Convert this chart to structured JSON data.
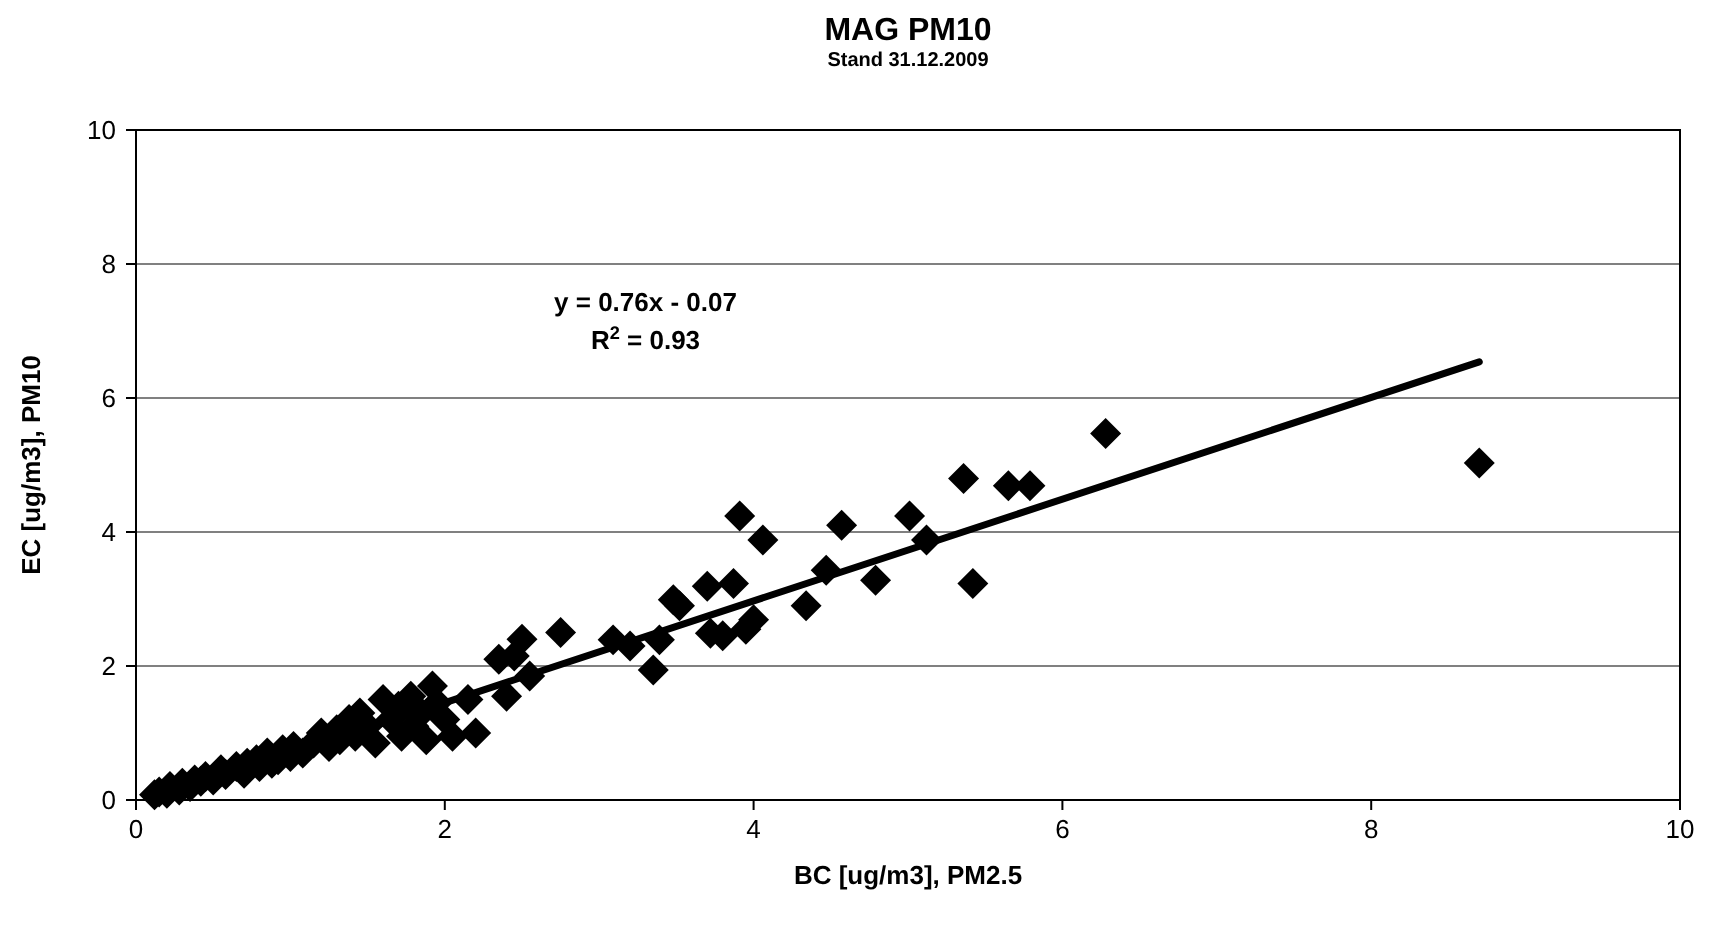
{
  "chart_data": {
    "type": "scatter",
    "title": "MAG PM10",
    "subtitle": "Stand 31.12.2009",
    "xlabel": "BC [ug/m3], PM2.5",
    "ylabel": "EC [ug/m3], PM10",
    "xlim": [
      0,
      10
    ],
    "xticks": [
      0,
      2,
      4,
      6,
      8,
      10
    ],
    "ylim": [
      0,
      10
    ],
    "yticks": [
      0,
      2,
      4,
      6,
      8,
      10
    ],
    "grid": "y",
    "annotations": [
      "y = 0.76x - 0.07",
      "R$^{2}$ = 0.93"
    ],
    "series": [
      {
        "marker": "diamond",
        "color": "#000000",
        "x": [
          0.12,
          0.15,
          0.2,
          0.22,
          0.28,
          0.3,
          0.35,
          0.38,
          0.42,
          0.45,
          0.5,
          0.55,
          0.58,
          0.65,
          0.7,
          0.72,
          0.78,
          0.8,
          0.85,
          0.88,
          0.92,
          0.95,
          1.0,
          1.02,
          1.08,
          1.15,
          1.2,
          1.25,
          1.3,
          1.32,
          1.38,
          1.42,
          1.45,
          1.5,
          1.55,
          1.6,
          1.65,
          1.7,
          1.72,
          1.78,
          1.8,
          1.85,
          1.88,
          1.92,
          1.95,
          2.0,
          2.05,
          2.15,
          2.2,
          2.35,
          2.4,
          2.45,
          2.5,
          2.55,
          2.75,
          3.09,
          3.2,
          3.35,
          3.39,
          3.48,
          3.52,
          3.7,
          3.72,
          3.8,
          3.87,
          3.91,
          3.95,
          4.0,
          4.06,
          4.34,
          4.47,
          4.57,
          4.79,
          5.01,
          5.12,
          5.36,
          5.42,
          5.65,
          5.79,
          6.28,
          8.7
        ],
        "values": [
          0.08,
          0.12,
          0.1,
          0.2,
          0.15,
          0.25,
          0.2,
          0.3,
          0.28,
          0.35,
          0.3,
          0.45,
          0.38,
          0.5,
          0.4,
          0.55,
          0.6,
          0.5,
          0.7,
          0.55,
          0.6,
          0.75,
          0.65,
          0.8,
          0.7,
          0.85,
          1.0,
          0.8,
          1.05,
          0.9,
          1.2,
          0.95,
          1.3,
          1.1,
          0.85,
          1.5,
          1.2,
          1.4,
          0.95,
          1.55,
          1.1,
          1.3,
          0.9,
          1.7,
          1.45,
          1.2,
          0.95,
          1.5,
          1.0,
          2.1,
          1.55,
          2.15,
          2.4,
          1.85,
          2.5,
          2.39,
          2.3,
          1.94,
          2.39,
          2.99,
          2.9,
          3.19,
          2.49,
          2.45,
          3.23,
          4.24,
          2.55,
          2.69,
          3.88,
          2.9,
          3.43,
          4.1,
          3.28,
          4.24,
          3.88,
          4.8,
          3.23,
          4.69,
          4.69,
          5.47,
          5.03
        ]
      },
      {
        "type": "line",
        "color": "#000000",
        "x": [
          0.72,
          8.7
        ],
        "values": [
          0.48,
          6.54
        ]
      }
    ]
  }
}
